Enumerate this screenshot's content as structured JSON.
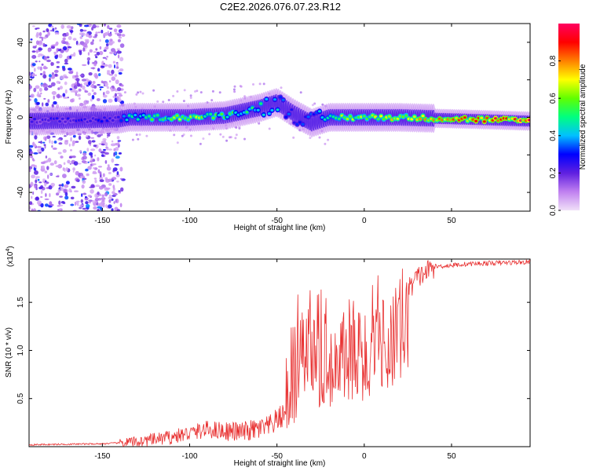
{
  "title": "C2E2.2026.076.07.23.R12",
  "chart_data": [
    {
      "type": "heatmap",
      "xlabel": "Height of straight line (km)",
      "ylabel": "Frequency (Hz)",
      "xlim": [
        -192,
        95
      ],
      "ylim": [
        -50,
        50
      ],
      "xticks": [
        -150,
        -100,
        -50,
        0,
        50
      ],
      "yticks": [
        -40,
        -20,
        0,
        20,
        40
      ],
      "colorbar": {
        "label": "Normalized spectral amplitude",
        "range": [
          0.0,
          1.0
        ],
        "ticks": [
          0.0,
          0.2,
          0.4,
          0.6,
          0.8
        ],
        "colors": [
          "#f0e0f8",
          "#c080f0",
          "#6020e0",
          "#0000ff",
          "#00c0ff",
          "#00ff80",
          "#60ff00",
          "#ffff00",
          "#ff8000",
          "#ff0000",
          "#ff0060"
        ]
      },
      "ridge": {
        "description_points": [
          {
            "x": -190,
            "f": -2,
            "a": 0.25
          },
          {
            "x": -140,
            "f": -1,
            "a": 0.3
          },
          {
            "x": -135,
            "f": 0,
            "a": 0.5
          },
          {
            "x": -100,
            "f": 0,
            "a": 0.7
          },
          {
            "x": -80,
            "f": 1,
            "a": 0.55
          },
          {
            "x": -60,
            "f": 5,
            "a": 0.5
          },
          {
            "x": -50,
            "f": 8,
            "a": 0.45
          },
          {
            "x": -40,
            "f": 2,
            "a": 0.3
          },
          {
            "x": -30,
            "f": -3,
            "a": 0.35
          },
          {
            "x": -20,
            "f": 0,
            "a": 0.6
          },
          {
            "x": 0,
            "f": 0,
            "a": 0.7
          },
          {
            "x": 20,
            "f": 0,
            "a": 0.75
          },
          {
            "x": 60,
            "f": -1,
            "a": 0.85
          },
          {
            "x": 95,
            "f": -2,
            "a": 1.0
          }
        ],
        "noise_region": [
          -192,
          -138
        ]
      }
    },
    {
      "type": "line",
      "xlabel": "Height of straight line (km)",
      "ylabel": "SNR (10 * v/v)",
      "y_multiplier": "(x10",
      "y_multiplier_exp": "4",
      "xlim": [
        -192,
        95
      ],
      "ylim": [
        0,
        1.95
      ],
      "xticks": [
        -150,
        -100,
        -50,
        0,
        50
      ],
      "yticks": [
        0.5,
        1.0,
        1.5
      ],
      "ytick_labels": [
        "0.5",
        "1.0",
        "1.5"
      ],
      "color": "#e83030",
      "envelope": [
        {
          "x": -192,
          "y": 0.02
        },
        {
          "x": -150,
          "y": 0.03
        },
        {
          "x": -130,
          "y": 0.05
        },
        {
          "x": -110,
          "y": 0.1
        },
        {
          "x": -90,
          "y": 0.18
        },
        {
          "x": -70,
          "y": 0.15
        },
        {
          "x": -55,
          "y": 0.2
        },
        {
          "x": -45,
          "y": 0.35
        },
        {
          "x": -38,
          "y": 0.75
        },
        {
          "x": -30,
          "y": 0.95
        },
        {
          "x": -20,
          "y": 1.0
        },
        {
          "x": -10,
          "y": 1.05
        },
        {
          "x": 0,
          "y": 1.05
        },
        {
          "x": 10,
          "y": 1.2
        },
        {
          "x": 20,
          "y": 1.5
        },
        {
          "x": 30,
          "y": 1.75
        },
        {
          "x": 40,
          "y": 1.87
        },
        {
          "x": 60,
          "y": 1.9
        },
        {
          "x": 95,
          "y": 1.92
        }
      ]
    }
  ]
}
